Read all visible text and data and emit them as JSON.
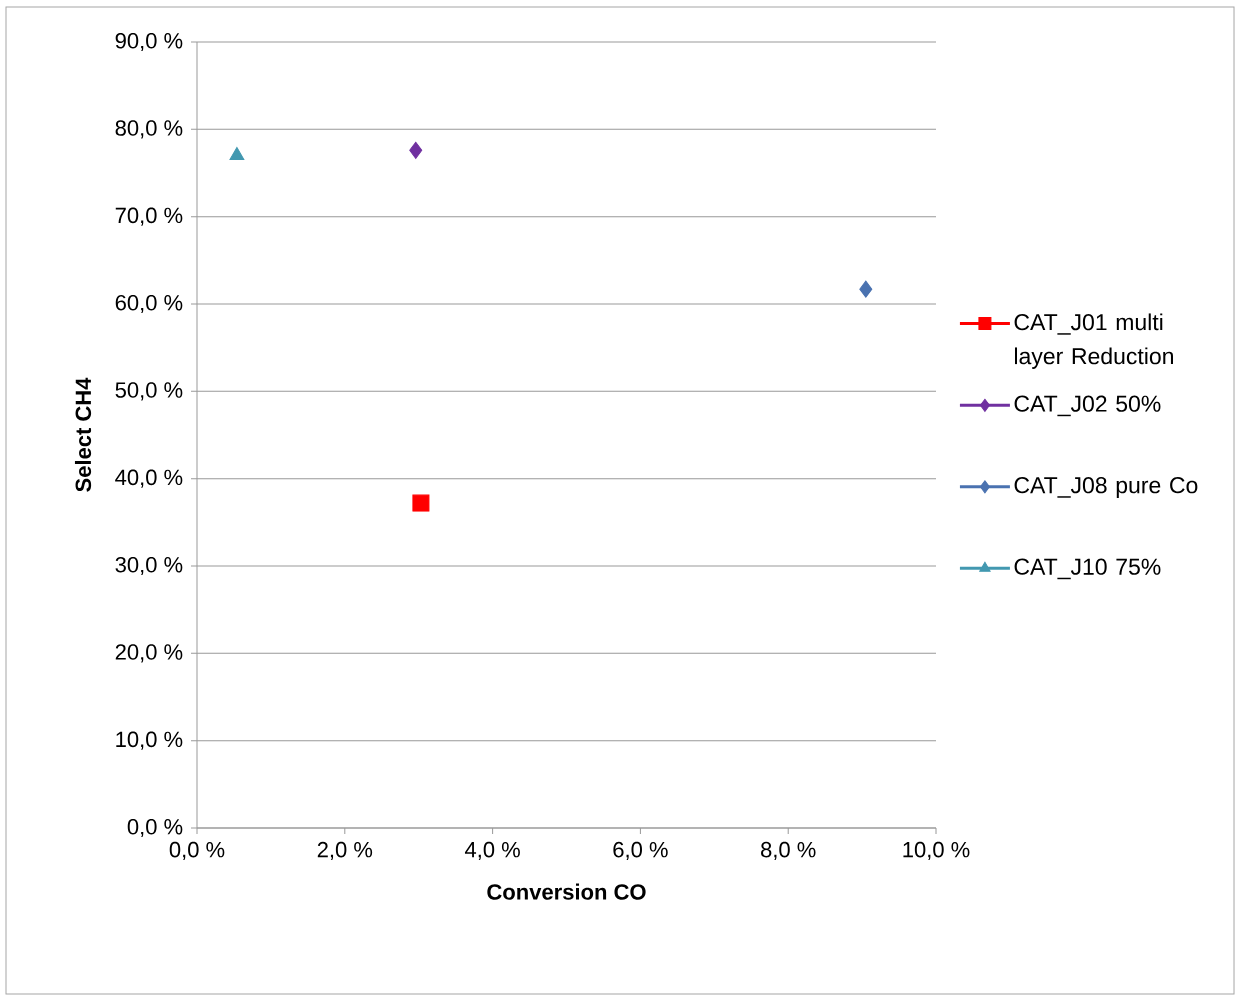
{
  "chart_data": {
    "type": "scatter",
    "xlabel": "Conversion CO",
    "ylabel": "Select CH4",
    "series": [
      {
        "name": "CAT_J01 multi layer Reduction",
        "color": "#ff0000",
        "marker": "square",
        "x": [
          3.03
        ],
        "values": [
          37.2
        ]
      },
      {
        "name": "CAT_J02 50%",
        "color": "#7030a0",
        "marker": "diamond",
        "x": [
          2.96
        ],
        "values": [
          77.6
        ]
      },
      {
        "name": "CAT_J08 pure Co",
        "color": "#4a72b0",
        "marker": "diamond",
        "x": [
          9.05
        ],
        "values": [
          61.7
        ]
      },
      {
        "name": "CAT_J10 75%",
        "color": "#4298b0",
        "marker": "triangle",
        "x": [
          0.54
        ],
        "values": [
          77.0
        ]
      }
    ],
    "xlim": [
      0,
      10
    ],
    "ylim": [
      0,
      90
    ],
    "xticks": [
      {
        "value": 0,
        "label": "0,0 %"
      },
      {
        "value": 2,
        "label": "2,0 %"
      },
      {
        "value": 4,
        "label": "4,0 %"
      },
      {
        "value": 6,
        "label": "6,0 %"
      },
      {
        "value": 8,
        "label": "8,0 %"
      },
      {
        "value": 10,
        "label": "10,0 %"
      }
    ],
    "yticks": [
      {
        "value": 0,
        "label": "0,0 %"
      },
      {
        "value": 10,
        "label": "10,0 %"
      },
      {
        "value": 20,
        "label": "20,0 %"
      },
      {
        "value": 30,
        "label": "30,0 %"
      },
      {
        "value": 40,
        "label": "40,0 %"
      },
      {
        "value": 50,
        "label": "50,0 %"
      },
      {
        "value": 60,
        "label": "60,0 %"
      },
      {
        "value": 70,
        "label": "70,0 %"
      },
      {
        "value": 80,
        "label": "80,0 %"
      },
      {
        "value": 90,
        "label": "90,0 %"
      }
    ],
    "grid": "y",
    "legend": "right"
  }
}
